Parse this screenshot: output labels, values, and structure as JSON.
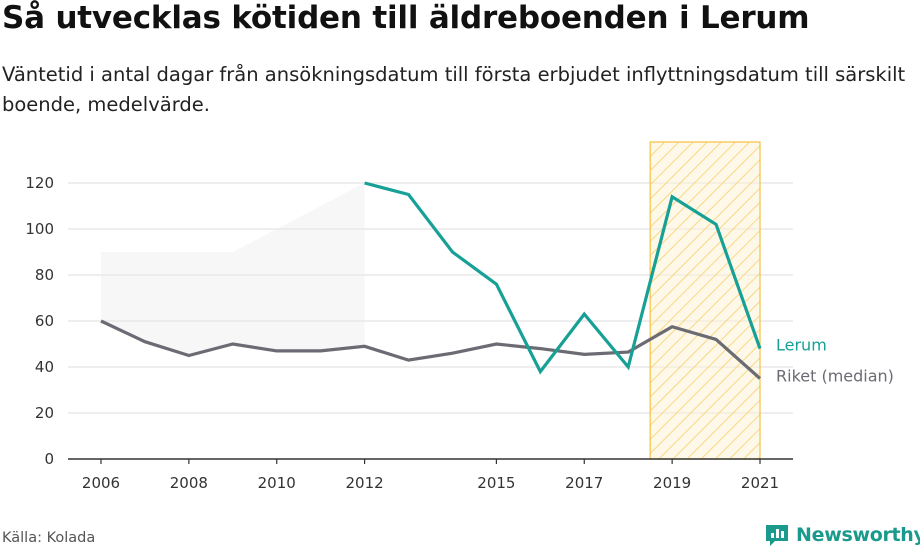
{
  "title": "Så utvecklas kötiden till äldreboenden i Lerum",
  "subtitle": "Väntetid i antal dagar från ansökningsdatum till första erbjudet inflyttningsdatum till särskilt boende, medelvärde.",
  "source": "Källa: Kolada",
  "brand": {
    "name": "Newsworthy",
    "icon": "newsworthy-logo-icon",
    "color": "#1a9a8c"
  },
  "chart_data": {
    "type": "line",
    "xlim": [
      2005.25,
      2021.75
    ],
    "ylim": [
      0,
      130
    ],
    "x_ticks": [
      2006,
      2008,
      2010,
      2012,
      2015,
      2017,
      2019,
      2021
    ],
    "y_ticks": [
      0,
      20,
      40,
      60,
      80,
      100,
      120
    ],
    "grid": true,
    "series": [
      {
        "name": "Lerum",
        "color": "#16a096",
        "points": [
          [
            2012,
            120
          ],
          [
            2013,
            115
          ],
          [
            2014,
            90
          ],
          [
            2015,
            76
          ],
          [
            2016,
            38
          ],
          [
            2017,
            63
          ],
          [
            2018,
            40
          ],
          [
            2019,
            114
          ],
          [
            2020,
            102
          ],
          [
            2021,
            48
          ]
        ]
      },
      {
        "name": "Riket (median)",
        "color": "#6b6b73",
        "points": [
          [
            2006,
            60
          ],
          [
            2007,
            51
          ],
          [
            2008,
            45
          ],
          [
            2009,
            50
          ],
          [
            2010,
            47
          ],
          [
            2011,
            47
          ],
          [
            2012,
            49
          ],
          [
            2013,
            43
          ],
          [
            2014,
            46
          ],
          [
            2015,
            50
          ],
          [
            2016,
            48
          ],
          [
            2017,
            45.5
          ],
          [
            2018,
            46.5
          ],
          [
            2019,
            57.5
          ],
          [
            2020,
            52
          ],
          [
            2021,
            35
          ]
        ]
      }
    ],
    "range_band": {
      "color": "#e8e8e8",
      "upper": [
        [
          2006,
          90
        ],
        [
          2009,
          90
        ],
        [
          2012,
          120
        ]
      ]
    },
    "highlight": {
      "from": 2018.5,
      "to": 2021,
      "color": "#f5c242"
    }
  }
}
